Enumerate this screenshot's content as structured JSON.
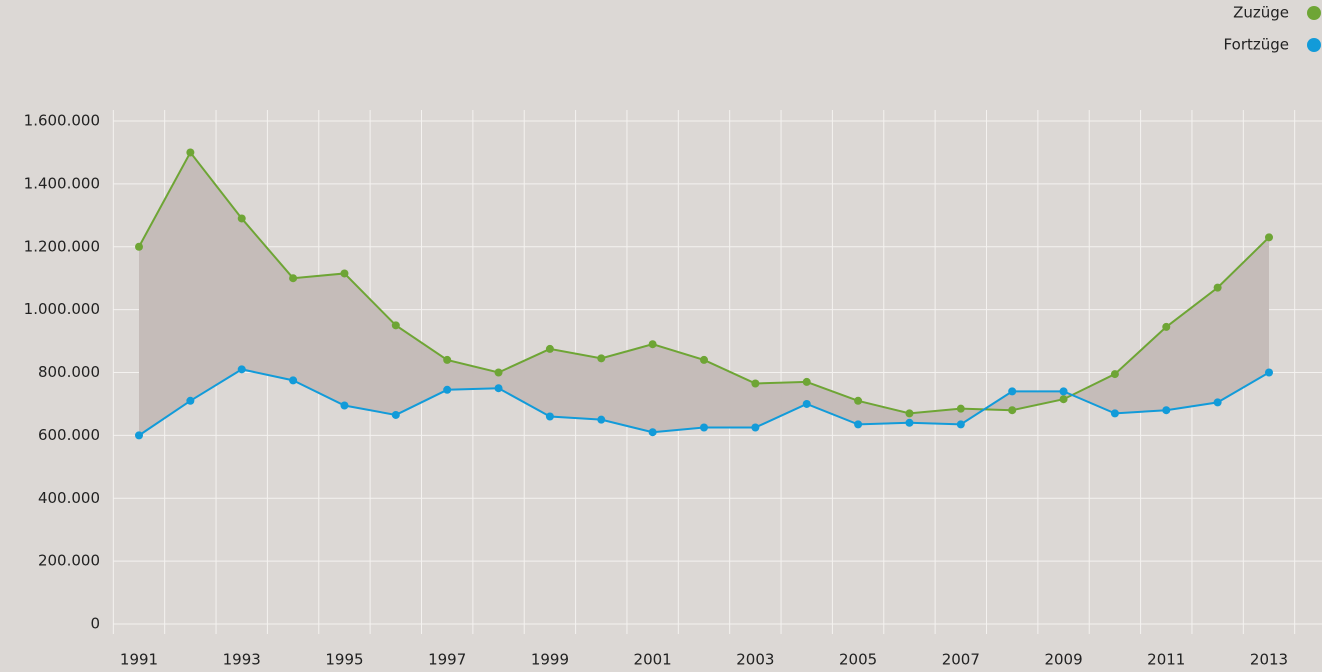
{
  "chart_data": {
    "type": "line",
    "categories": [
      "1991",
      null,
      "1993",
      null,
      "1995",
      null,
      "1997",
      null,
      "1999",
      null,
      "2001",
      null,
      "2003",
      null,
      "2005",
      null,
      "2007",
      null,
      "2009",
      null,
      "2011",
      null,
      "2013"
    ],
    "series": [
      {
        "name": "Zuzüge",
        "color": "#6ea535",
        "values": [
          1200000,
          1500000,
          1290000,
          1100000,
          1115000,
          950000,
          840000,
          800000,
          875000,
          845000,
          890000,
          840000,
          765000,
          770000,
          710000,
          670000,
          685000,
          680000,
          715000,
          795000,
          945000,
          1070000,
          1230000
        ]
      },
      {
        "name": "Fortzüge",
        "color": "#129bd9",
        "values": [
          600000,
          710000,
          810000,
          775000,
          695000,
          665000,
          745000,
          750000,
          660000,
          650000,
          610000,
          625000,
          625000,
          700000,
          635000,
          640000,
          635000,
          740000,
          740000,
          670000,
          680000,
          705000,
          800000
        ]
      }
    ],
    "ylim": [
      0,
      1600000
    ],
    "yticks": [
      0,
      {
        "value": 200000,
        "label": "200.000"
      },
      {
        "value": 400000,
        "label": "400.000"
      },
      {
        "value": 600000,
        "label": "600.000"
      },
      {
        "value": 800000,
        "label": "800.000"
      },
      {
        "value": 1000000,
        "label": "1.000.000"
      },
      {
        "value": 1200000,
        "label": "1.200.000"
      },
      {
        "value": 1400000,
        "label": "1.400.000"
      },
      {
        "value": 1600000,
        "label": "1.600.000"
      }
    ],
    "grid": true,
    "fill_between": true,
    "fill_color": "#c5bcb9",
    "legend": "top-right"
  }
}
